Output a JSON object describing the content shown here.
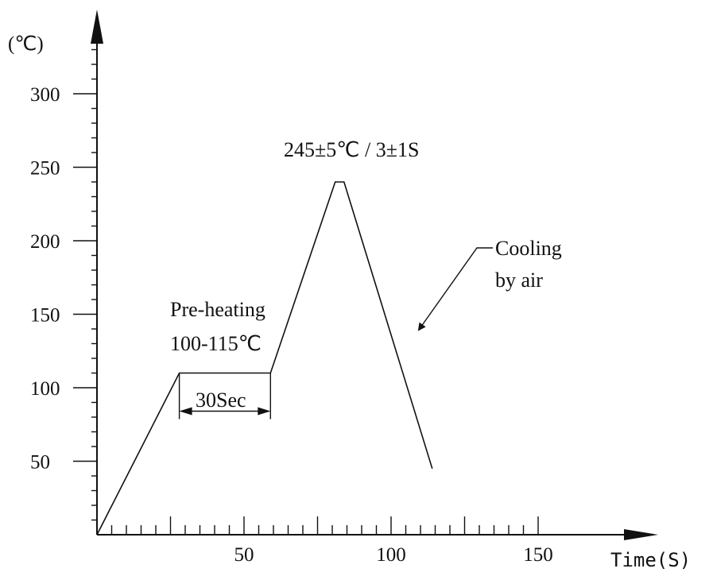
{
  "chart_data": {
    "type": "line",
    "y_unit_label": "(℃)",
    "x_axis_label": "Time(S)",
    "xlim": [
      0,
      190
    ],
    "ylim": [
      0,
      340
    ],
    "x_ticks": [
      50,
      100,
      150
    ],
    "y_ticks": [
      50,
      100,
      150,
      200,
      250,
      300
    ],
    "x_minor_step": 5,
    "y_minor_step": 10,
    "grid": false,
    "series": [
      {
        "x": [
          0,
          28,
          59,
          81,
          84,
          114
        ],
        "y": [
          0,
          110,
          110,
          240,
          240,
          45
        ]
      }
    ],
    "annotations": {
      "peak": "245±5℃ / 3±1S",
      "preheat_line1": "Pre-heating",
      "preheat_line2": "100-115℃",
      "duration": "30Sec",
      "cooling_line1": "Cooling",
      "cooling_line2": "by air"
    },
    "duration_span": [
      28,
      59
    ],
    "colors": {
      "ink": "#111111",
      "background": "#ffffff"
    }
  }
}
